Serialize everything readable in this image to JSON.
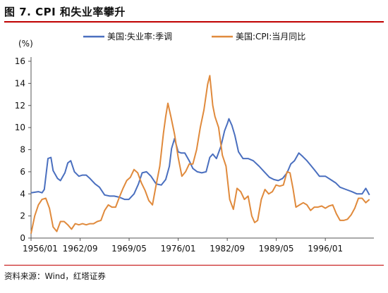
{
  "figure": {
    "title": "图 7. CPI 和失业率攀升",
    "source": "资料来源：Wind，红塔证券"
  },
  "colors": {
    "unemployment": "#4a6fbf",
    "cpi": "#e08a3c",
    "axis": "#555555",
    "rule": "#c00000"
  },
  "chart_data": {
    "type": "line",
    "ylabel": "(%)",
    "ylim": [
      0,
      16
    ],
    "yticks": [
      0,
      2,
      4,
      6,
      8,
      10,
      12,
      14,
      16
    ],
    "xlim": [
      1956.0,
      2002.6
    ],
    "xticks": [
      {
        "label": "1956/01",
        "value": 1956.0
      },
      {
        "label": "1962/09",
        "value": 1962.67
      },
      {
        "label": "1969/05",
        "value": 1969.33
      },
      {
        "label": "1976/01",
        "value": 1976.0
      },
      {
        "label": "1982/09",
        "value": 1982.67
      },
      {
        "label": "1989/05",
        "value": 1989.33
      },
      {
        "label": "1996/01",
        "value": 1996.0
      }
    ],
    "legend_position": "top",
    "grid": false,
    "series": [
      {
        "name": "美国:失业率:季调",
        "color_key": "unemployment",
        "x": [
          1956.0,
          1957.0,
          1957.5,
          1957.8,
          1958.3,
          1958.7,
          1959.0,
          1959.6,
          1960.0,
          1960.6,
          1961.0,
          1961.4,
          1961.9,
          1962.5,
          1963.0,
          1963.5,
          1964.0,
          1964.7,
          1965.3,
          1966.0,
          1966.7,
          1967.3,
          1968.0,
          1968.7,
          1969.3,
          1970.0,
          1970.6,
          1971.1,
          1971.7,
          1972.3,
          1973.0,
          1973.7,
          1974.3,
          1974.8,
          1975.1,
          1975.5,
          1976.0,
          1976.4,
          1976.9,
          1977.5,
          1978.0,
          1978.6,
          1979.2,
          1979.8,
          1980.3,
          1980.7,
          1981.2,
          1981.8,
          1982.3,
          1982.7,
          1982.9,
          1983.3,
          1983.7,
          1984.2,
          1984.8,
          1985.5,
          1986.2,
          1987.0,
          1987.7,
          1988.4,
          1989.0,
          1989.6,
          1990.2,
          1990.8,
          1991.3,
          1991.8,
          1992.4,
          1992.9,
          1993.5,
          1994.0,
          1994.6,
          1995.2,
          1996.0,
          1996.7,
          1997.4,
          1998.0,
          1998.8,
          1999.6,
          2000.3,
          2001.0,
          2001.5,
          2002.0
        ],
        "y": [
          4.1,
          4.2,
          4.1,
          4.4,
          7.2,
          7.3,
          6.1,
          5.4,
          5.2,
          5.9,
          6.8,
          7.0,
          6.0,
          5.6,
          5.7,
          5.7,
          5.4,
          4.9,
          4.6,
          3.9,
          3.8,
          3.8,
          3.7,
          3.5,
          3.5,
          4.0,
          4.9,
          5.9,
          6.0,
          5.6,
          4.9,
          4.8,
          5.3,
          6.5,
          8.1,
          9.0,
          7.8,
          7.7,
          7.7,
          7.0,
          6.3,
          6.0,
          5.9,
          6.0,
          7.3,
          7.6,
          7.2,
          8.3,
          9.7,
          10.4,
          10.8,
          10.2,
          9.3,
          7.8,
          7.2,
          7.2,
          7.0,
          6.5,
          6.0,
          5.5,
          5.3,
          5.2,
          5.4,
          5.9,
          6.7,
          7.0,
          7.7,
          7.4,
          7.0,
          6.6,
          6.1,
          5.6,
          5.6,
          5.3,
          5.0,
          4.6,
          4.4,
          4.2,
          4.0,
          4.0,
          4.5,
          3.9
        ]
      },
      {
        "name": "美国:CPI:当月同比",
        "color_key": "cpi",
        "x": [
          1956.0,
          1956.5,
          1957.0,
          1957.5,
          1958.0,
          1958.5,
          1959.0,
          1959.5,
          1960.0,
          1960.5,
          1961.0,
          1961.5,
          1962.0,
          1962.5,
          1963.0,
          1963.5,
          1964.0,
          1964.5,
          1965.0,
          1965.5,
          1966.0,
          1966.5,
          1967.0,
          1967.5,
          1968.0,
          1968.5,
          1969.0,
          1969.5,
          1970.0,
          1970.5,
          1971.0,
          1971.5,
          1972.0,
          1972.5,
          1973.0,
          1973.5,
          1974.0,
          1974.3,
          1974.6,
          1975.0,
          1975.5,
          1976.0,
          1976.5,
          1977.0,
          1977.5,
          1978.0,
          1978.5,
          1979.0,
          1979.5,
          1980.0,
          1980.3,
          1980.7,
          1981.0,
          1981.5,
          1982.0,
          1982.5,
          1983.0,
          1983.5,
          1984.0,
          1984.5,
          1985.0,
          1985.5,
          1986.0,
          1986.4,
          1986.8,
          1987.3,
          1987.8,
          1988.3,
          1988.8,
          1989.3,
          1989.8,
          1990.3,
          1990.8,
          1991.2,
          1991.6,
          1992.0,
          1992.5,
          1993.0,
          1993.5,
          1994.0,
          1994.5,
          1995.0,
          1995.5,
          1996.0,
          1996.5,
          1997.0,
          1997.5,
          1998.0,
          1998.5,
          1999.0,
          1999.5,
          2000.0,
          2000.5,
          2001.0,
          2001.5,
          2002.0
        ],
        "y": [
          0.4,
          2.0,
          3.0,
          3.5,
          3.6,
          2.7,
          1.0,
          0.6,
          1.5,
          1.5,
          1.2,
          0.8,
          1.3,
          1.2,
          1.3,
          1.2,
          1.3,
          1.3,
          1.5,
          1.6,
          2.5,
          3.0,
          2.8,
          2.8,
          3.7,
          4.5,
          5.2,
          5.5,
          6.2,
          5.9,
          5.0,
          4.3,
          3.4,
          3.0,
          4.8,
          6.5,
          9.5,
          11.0,
          12.2,
          11.0,
          9.4,
          7.3,
          5.6,
          6.0,
          6.7,
          6.7,
          8.0,
          10.0,
          11.6,
          13.9,
          14.7,
          12.0,
          11.0,
          10.0,
          7.5,
          6.5,
          3.5,
          2.6,
          4.5,
          4.2,
          3.5,
          3.8,
          2.0,
          1.4,
          1.6,
          3.5,
          4.4,
          4.0,
          4.2,
          4.8,
          4.7,
          4.8,
          6.0,
          5.9,
          4.5,
          2.8,
          3.0,
          3.2,
          3.0,
          2.5,
          2.8,
          2.8,
          2.9,
          2.7,
          2.9,
          3.0,
          2.2,
          1.6,
          1.6,
          1.7,
          2.1,
          2.7,
          3.6,
          3.6,
          3.2,
          3.5
        ]
      }
    ]
  }
}
